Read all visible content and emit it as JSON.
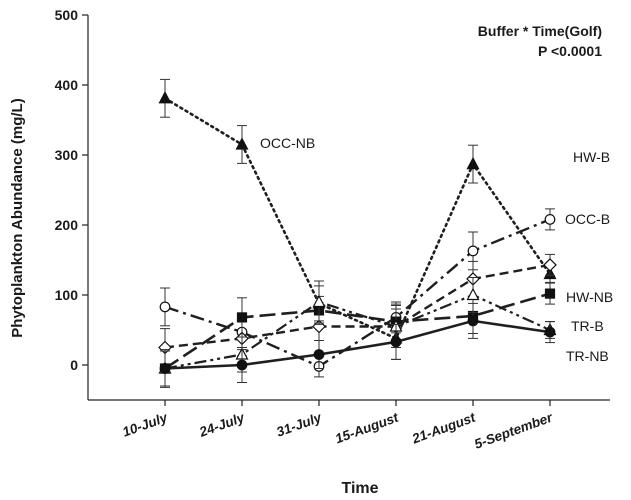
{
  "chart_data": {
    "type": "line",
    "title": "",
    "annotation": [
      "Buffer * Time(Golf)",
      "P <0.0001"
    ],
    "xlabel": "Time",
    "ylabel": "Phytoplankton Abundance (mg/L)",
    "ylim": [
      -50,
      500
    ],
    "yticks": [
      0,
      100,
      200,
      300,
      400,
      500
    ],
    "categories": [
      "10-July",
      "24-July",
      "31-July",
      "15-August",
      "21-August",
      "5-September"
    ],
    "grid": false,
    "series": [
      {
        "name": "OCC-NB",
        "marker": "triangle-filled",
        "dash": "dotted",
        "values": [
          381,
          315,
          88,
          38,
          287,
          130
        ],
        "errors": [
          27,
          27,
          25,
          30,
          27,
          12
        ]
      },
      {
        "name": "OCC-B",
        "marker": "circle-open",
        "dash": "dash-dot",
        "values": [
          83,
          47,
          -2,
          68,
          163,
          208
        ],
        "errors": [
          27,
          25,
          15,
          22,
          27,
          15
        ]
      },
      {
        "name": "HW-B",
        "marker": "diamond-open",
        "dash": "dash",
        "values": [
          25,
          38,
          55,
          55,
          123,
          143
        ],
        "errors": [
          27,
          25,
          20,
          30,
          25,
          15
        ]
      },
      {
        "name": "HW-NB",
        "marker": "square-filled",
        "dash": "long-dash",
        "values": [
          -5,
          68,
          78,
          62,
          70,
          102
        ],
        "errors": [
          27,
          28,
          20,
          25,
          25,
          15
        ]
      },
      {
        "name": "TR-B",
        "marker": "triangle-open",
        "dash": "dash-dot-dot",
        "values": [
          -5,
          15,
          90,
          55,
          100,
          50
        ],
        "errors": [
          25,
          25,
          30,
          25,
          25,
          12
        ]
      },
      {
        "name": "TR-NB",
        "marker": "circle-filled",
        "dash": "solid",
        "values": [
          -5,
          0,
          15,
          33,
          63,
          47
        ],
        "errors": [
          25,
          25,
          20,
          25,
          25,
          15
        ]
      }
    ]
  }
}
